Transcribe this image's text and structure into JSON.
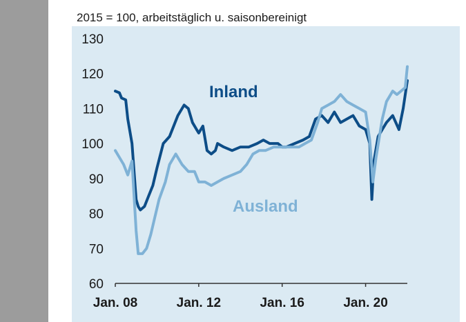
{
  "chart_data": {
    "type": "line",
    "title": "2015 = 100, arbeitstäglich u. saisonbereinigt",
    "xlabel": "",
    "ylabel": "",
    "ylim": [
      60,
      130
    ],
    "yticks": [
      60,
      70,
      80,
      90,
      100,
      110,
      120,
      130
    ],
    "xlim": [
      2008.0,
      2022.0
    ],
    "xticks": [
      {
        "value": 2008,
        "label": "Jan. 08"
      },
      {
        "value": 2012,
        "label": "Jan. 12"
      },
      {
        "value": 2016,
        "label": "Jan. 16"
      },
      {
        "value": 2020,
        "label": "Jan. 20"
      }
    ],
    "colors": {
      "background": "#dbeaf3",
      "axis": "#333333"
    },
    "series": [
      {
        "name": "Inland",
        "color": "#0d4d87",
        "x": [
          2008.0,
          2008.2,
          2008.3,
          2008.5,
          2008.6,
          2008.8,
          2009.0,
          2009.1,
          2009.2,
          2009.4,
          2009.6,
          2009.8,
          2010.0,
          2010.3,
          2010.6,
          2011.0,
          2011.3,
          2011.5,
          2011.7,
          2011.9,
          2012.0,
          2012.2,
          2012.4,
          2012.6,
          2012.8,
          2012.9,
          2013.2,
          2013.6,
          2014.0,
          2014.4,
          2014.8,
          2015.1,
          2015.4,
          2015.8,
          2016.0,
          2016.2,
          2016.6,
          2017.0,
          2017.3,
          2017.6,
          2017.9,
          2018.2,
          2018.5,
          2018.8,
          2019.1,
          2019.4,
          2019.7,
          2020.0,
          2020.2,
          2020.3,
          2020.4,
          2020.6,
          2020.8,
          2021.0,
          2021.3,
          2021.6,
          2021.8,
          2022.0
        ],
        "values": [
          115,
          114.5,
          113,
          112.5,
          107,
          100,
          84,
          82,
          81,
          82,
          85,
          88,
          93,
          100,
          102,
          108,
          111,
          110,
          106,
          104,
          103,
          105,
          98,
          97,
          98,
          100,
          99,
          98,
          99,
          99,
          100,
          101,
          100,
          100,
          99,
          99,
          100,
          101,
          102,
          107,
          108,
          106,
          109,
          106,
          107,
          108,
          105,
          104,
          100,
          84,
          95,
          102,
          104,
          106,
          108,
          104,
          110,
          118
        ]
      },
      {
        "name": "Ausland",
        "color": "#7fb2d6",
        "x": [
          2008.0,
          2008.2,
          2008.4,
          2008.6,
          2008.8,
          2009.0,
          2009.1,
          2009.3,
          2009.5,
          2009.7,
          2009.9,
          2010.1,
          2010.4,
          2010.6,
          2010.9,
          2011.2,
          2011.5,
          2011.8,
          2012.0,
          2012.3,
          2012.6,
          2012.9,
          2013.2,
          2013.6,
          2014.0,
          2014.3,
          2014.6,
          2014.9,
          2015.2,
          2015.6,
          2016.0,
          2016.4,
          2016.8,
          2017.1,
          2017.4,
          2017.7,
          2017.9,
          2018.2,
          2018.5,
          2018.8,
          2019.1,
          2019.4,
          2019.7,
          2020.0,
          2020.2,
          2020.35,
          2020.5,
          2020.8,
          2021.0,
          2021.3,
          2021.5,
          2021.7,
          2021.9,
          2022.0
        ],
        "values": [
          98,
          96,
          94,
          91,
          95,
          75,
          68.5,
          68.5,
          70,
          74,
          79,
          84,
          89,
          94,
          97,
          94,
          92,
          92,
          89,
          89,
          88,
          89,
          90,
          91,
          92,
          94,
          97,
          98,
          98,
          99,
          99,
          99,
          99,
          100,
          101,
          106,
          110,
          111,
          112,
          114,
          112,
          111,
          110,
          109,
          101,
          89,
          96,
          107,
          112,
          115,
          114,
          115,
          116,
          122
        ]
      }
    ],
    "series_labels": [
      "Inland",
      "Ausland"
    ]
  }
}
